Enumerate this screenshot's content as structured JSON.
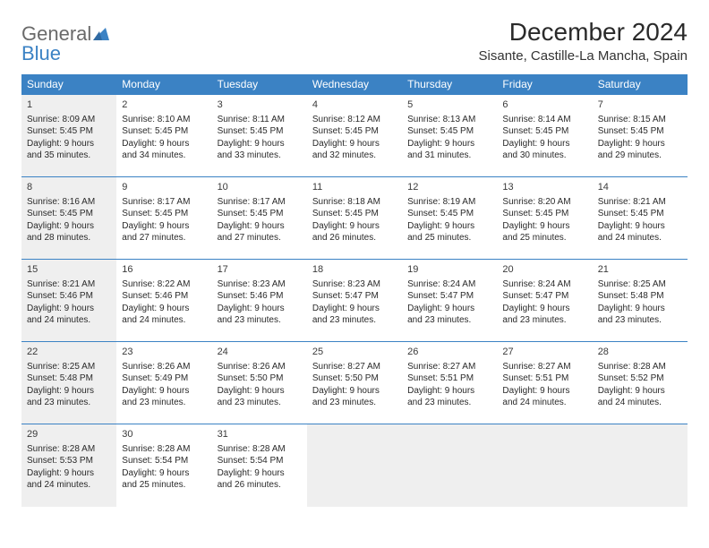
{
  "logo": {
    "word1": "General",
    "word2": "Blue"
  },
  "title": "December 2024",
  "location": "Sisante, Castille-La Mancha, Spain",
  "colors": {
    "header_bg": "#3b82c4",
    "header_fg": "#ffffff",
    "cell_border": "#3b82c4",
    "shaded_bg": "#efefef",
    "text": "#333333",
    "logo_gray": "#6a6a6a",
    "logo_blue": "#3b82c4"
  },
  "day_headers": [
    "Sunday",
    "Monday",
    "Tuesday",
    "Wednesday",
    "Thursday",
    "Friday",
    "Saturday"
  ],
  "weeks": [
    [
      {
        "n": "1",
        "shaded": true,
        "sr": "Sunrise: 8:09 AM",
        "ss": "Sunset: 5:45 PM",
        "d1": "Daylight: 9 hours",
        "d2": "and 35 minutes."
      },
      {
        "n": "2",
        "shaded": false,
        "sr": "Sunrise: 8:10 AM",
        "ss": "Sunset: 5:45 PM",
        "d1": "Daylight: 9 hours",
        "d2": "and 34 minutes."
      },
      {
        "n": "3",
        "shaded": false,
        "sr": "Sunrise: 8:11 AM",
        "ss": "Sunset: 5:45 PM",
        "d1": "Daylight: 9 hours",
        "d2": "and 33 minutes."
      },
      {
        "n": "4",
        "shaded": false,
        "sr": "Sunrise: 8:12 AM",
        "ss": "Sunset: 5:45 PM",
        "d1": "Daylight: 9 hours",
        "d2": "and 32 minutes."
      },
      {
        "n": "5",
        "shaded": false,
        "sr": "Sunrise: 8:13 AM",
        "ss": "Sunset: 5:45 PM",
        "d1": "Daylight: 9 hours",
        "d2": "and 31 minutes."
      },
      {
        "n": "6",
        "shaded": false,
        "sr": "Sunrise: 8:14 AM",
        "ss": "Sunset: 5:45 PM",
        "d1": "Daylight: 9 hours",
        "d2": "and 30 minutes."
      },
      {
        "n": "7",
        "shaded": false,
        "sr": "Sunrise: 8:15 AM",
        "ss": "Sunset: 5:45 PM",
        "d1": "Daylight: 9 hours",
        "d2": "and 29 minutes."
      }
    ],
    [
      {
        "n": "8",
        "shaded": true,
        "sr": "Sunrise: 8:16 AM",
        "ss": "Sunset: 5:45 PM",
        "d1": "Daylight: 9 hours",
        "d2": "and 28 minutes."
      },
      {
        "n": "9",
        "shaded": false,
        "sr": "Sunrise: 8:17 AM",
        "ss": "Sunset: 5:45 PM",
        "d1": "Daylight: 9 hours",
        "d2": "and 27 minutes."
      },
      {
        "n": "10",
        "shaded": false,
        "sr": "Sunrise: 8:17 AM",
        "ss": "Sunset: 5:45 PM",
        "d1": "Daylight: 9 hours",
        "d2": "and 27 minutes."
      },
      {
        "n": "11",
        "shaded": false,
        "sr": "Sunrise: 8:18 AM",
        "ss": "Sunset: 5:45 PM",
        "d1": "Daylight: 9 hours",
        "d2": "and 26 minutes."
      },
      {
        "n": "12",
        "shaded": false,
        "sr": "Sunrise: 8:19 AM",
        "ss": "Sunset: 5:45 PM",
        "d1": "Daylight: 9 hours",
        "d2": "and 25 minutes."
      },
      {
        "n": "13",
        "shaded": false,
        "sr": "Sunrise: 8:20 AM",
        "ss": "Sunset: 5:45 PM",
        "d1": "Daylight: 9 hours",
        "d2": "and 25 minutes."
      },
      {
        "n": "14",
        "shaded": false,
        "sr": "Sunrise: 8:21 AM",
        "ss": "Sunset: 5:45 PM",
        "d1": "Daylight: 9 hours",
        "d2": "and 24 minutes."
      }
    ],
    [
      {
        "n": "15",
        "shaded": true,
        "sr": "Sunrise: 8:21 AM",
        "ss": "Sunset: 5:46 PM",
        "d1": "Daylight: 9 hours",
        "d2": "and 24 minutes."
      },
      {
        "n": "16",
        "shaded": false,
        "sr": "Sunrise: 8:22 AM",
        "ss": "Sunset: 5:46 PM",
        "d1": "Daylight: 9 hours",
        "d2": "and 24 minutes."
      },
      {
        "n": "17",
        "shaded": false,
        "sr": "Sunrise: 8:23 AM",
        "ss": "Sunset: 5:46 PM",
        "d1": "Daylight: 9 hours",
        "d2": "and 23 minutes."
      },
      {
        "n": "18",
        "shaded": false,
        "sr": "Sunrise: 8:23 AM",
        "ss": "Sunset: 5:47 PM",
        "d1": "Daylight: 9 hours",
        "d2": "and 23 minutes."
      },
      {
        "n": "19",
        "shaded": false,
        "sr": "Sunrise: 8:24 AM",
        "ss": "Sunset: 5:47 PM",
        "d1": "Daylight: 9 hours",
        "d2": "and 23 minutes."
      },
      {
        "n": "20",
        "shaded": false,
        "sr": "Sunrise: 8:24 AM",
        "ss": "Sunset: 5:47 PM",
        "d1": "Daylight: 9 hours",
        "d2": "and 23 minutes."
      },
      {
        "n": "21",
        "shaded": false,
        "sr": "Sunrise: 8:25 AM",
        "ss": "Sunset: 5:48 PM",
        "d1": "Daylight: 9 hours",
        "d2": "and 23 minutes."
      }
    ],
    [
      {
        "n": "22",
        "shaded": true,
        "sr": "Sunrise: 8:25 AM",
        "ss": "Sunset: 5:48 PM",
        "d1": "Daylight: 9 hours",
        "d2": "and 23 minutes."
      },
      {
        "n": "23",
        "shaded": false,
        "sr": "Sunrise: 8:26 AM",
        "ss": "Sunset: 5:49 PM",
        "d1": "Daylight: 9 hours",
        "d2": "and 23 minutes."
      },
      {
        "n": "24",
        "shaded": false,
        "sr": "Sunrise: 8:26 AM",
        "ss": "Sunset: 5:50 PM",
        "d1": "Daylight: 9 hours",
        "d2": "and 23 minutes."
      },
      {
        "n": "25",
        "shaded": false,
        "sr": "Sunrise: 8:27 AM",
        "ss": "Sunset: 5:50 PM",
        "d1": "Daylight: 9 hours",
        "d2": "and 23 minutes."
      },
      {
        "n": "26",
        "shaded": false,
        "sr": "Sunrise: 8:27 AM",
        "ss": "Sunset: 5:51 PM",
        "d1": "Daylight: 9 hours",
        "d2": "and 23 minutes."
      },
      {
        "n": "27",
        "shaded": false,
        "sr": "Sunrise: 8:27 AM",
        "ss": "Sunset: 5:51 PM",
        "d1": "Daylight: 9 hours",
        "d2": "and 24 minutes."
      },
      {
        "n": "28",
        "shaded": false,
        "sr": "Sunrise: 8:28 AM",
        "ss": "Sunset: 5:52 PM",
        "d1": "Daylight: 9 hours",
        "d2": "and 24 minutes."
      }
    ],
    [
      {
        "n": "29",
        "shaded": true,
        "sr": "Sunrise: 8:28 AM",
        "ss": "Sunset: 5:53 PM",
        "d1": "Daylight: 9 hours",
        "d2": "and 24 minutes."
      },
      {
        "n": "30",
        "shaded": false,
        "sr": "Sunrise: 8:28 AM",
        "ss": "Sunset: 5:54 PM",
        "d1": "Daylight: 9 hours",
        "d2": "and 25 minutes."
      },
      {
        "n": "31",
        "shaded": false,
        "sr": "Sunrise: 8:28 AM",
        "ss": "Sunset: 5:54 PM",
        "d1": "Daylight: 9 hours",
        "d2": "and 26 minutes."
      },
      {
        "n": "",
        "shaded": true,
        "sr": "",
        "ss": "",
        "d1": "",
        "d2": ""
      },
      {
        "n": "",
        "shaded": true,
        "sr": "",
        "ss": "",
        "d1": "",
        "d2": ""
      },
      {
        "n": "",
        "shaded": true,
        "sr": "",
        "ss": "",
        "d1": "",
        "d2": ""
      },
      {
        "n": "",
        "shaded": true,
        "sr": "",
        "ss": "",
        "d1": "",
        "d2": ""
      }
    ]
  ]
}
